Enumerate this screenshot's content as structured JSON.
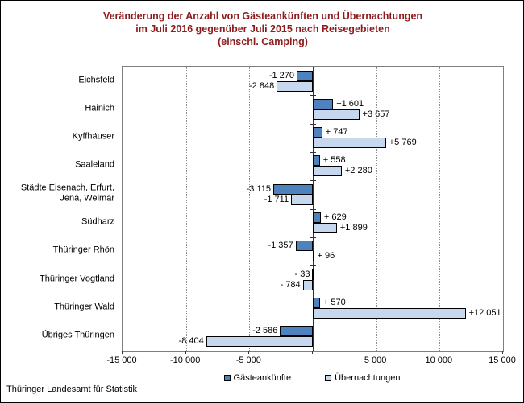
{
  "chart": {
    "footer": "Thüringer Landesamt für Statistik",
    "colors": {
      "title_text": "#8e1b1d",
      "series1_fill": "#4f81bd",
      "series2_fill": "#c7d7ee",
      "bar_border": "#000000",
      "gridline": "#8c8c8c",
      "axis": "#333333"
    }
  },
  "chart_data": {
    "type": "bar",
    "orientation": "horizontal",
    "title": "Veränderung der Anzahl von Gästeankünften und Übernachtungen im Juli 2016 gegenüber Juli 2015 nach Reisegebieten (einschl. Camping)",
    "title_lines": [
      "Veränderung der Anzahl von Gästeankünften und Übernachtungen",
      "im Juli 2016 gegenüber Juli 2015 nach Reisegebieten",
      "(einschl. Camping)"
    ],
    "categories": [
      "Eichsfeld",
      "Hainich",
      "Kyffhäuser",
      "Saaleland",
      "Städte Eisenach, Erfurt,\nJena, Weimar",
      "Südharz",
      "Thüringer Rhön",
      "Thüringer Vogtland",
      "Thüringer Wald",
      "Übriges Thüringen"
    ],
    "series": [
      {
        "name": "Gästeankünfte",
        "values": [
          -1270,
          1601,
          747,
          558,
          -3115,
          629,
          -1357,
          -33,
          570,
          -2586
        ],
        "labels": [
          "-1 270",
          "+1 601",
          "+ 747",
          "+ 558",
          "-3 115",
          "+ 629",
          "-1 357",
          "- 33",
          "+ 570",
          "-2 586"
        ]
      },
      {
        "name": "Übernachtungen",
        "values": [
          -2848,
          3657,
          5769,
          2280,
          -1711,
          1899,
          96,
          -784,
          12051,
          -8404
        ],
        "labels": [
          "-2 848",
          "+3 657",
          "+5 769",
          "+2 280",
          "-1 711",
          "+1 899",
          "+ 96",
          "- 784",
          "+12 051",
          "-8 404"
        ]
      }
    ],
    "xlim": [
      -15000,
      15000
    ],
    "x_ticks": [
      {
        "value": -15000,
        "label": "-15 000"
      },
      {
        "value": -10000,
        "label": "-10 000"
      },
      {
        "value": -5000,
        "label": "-5 000"
      },
      {
        "value": 0,
        "label": ""
      },
      {
        "value": 5000,
        "label": "5 000"
      },
      {
        "value": 10000,
        "label": "10 000"
      },
      {
        "value": 15000,
        "label": "15 000"
      }
    ],
    "gridlines": [
      -10000,
      -5000,
      5000,
      10000
    ],
    "grid": "vertical-dotted",
    "legend_position": "bottom",
    "xlabel": "",
    "ylabel": ""
  }
}
